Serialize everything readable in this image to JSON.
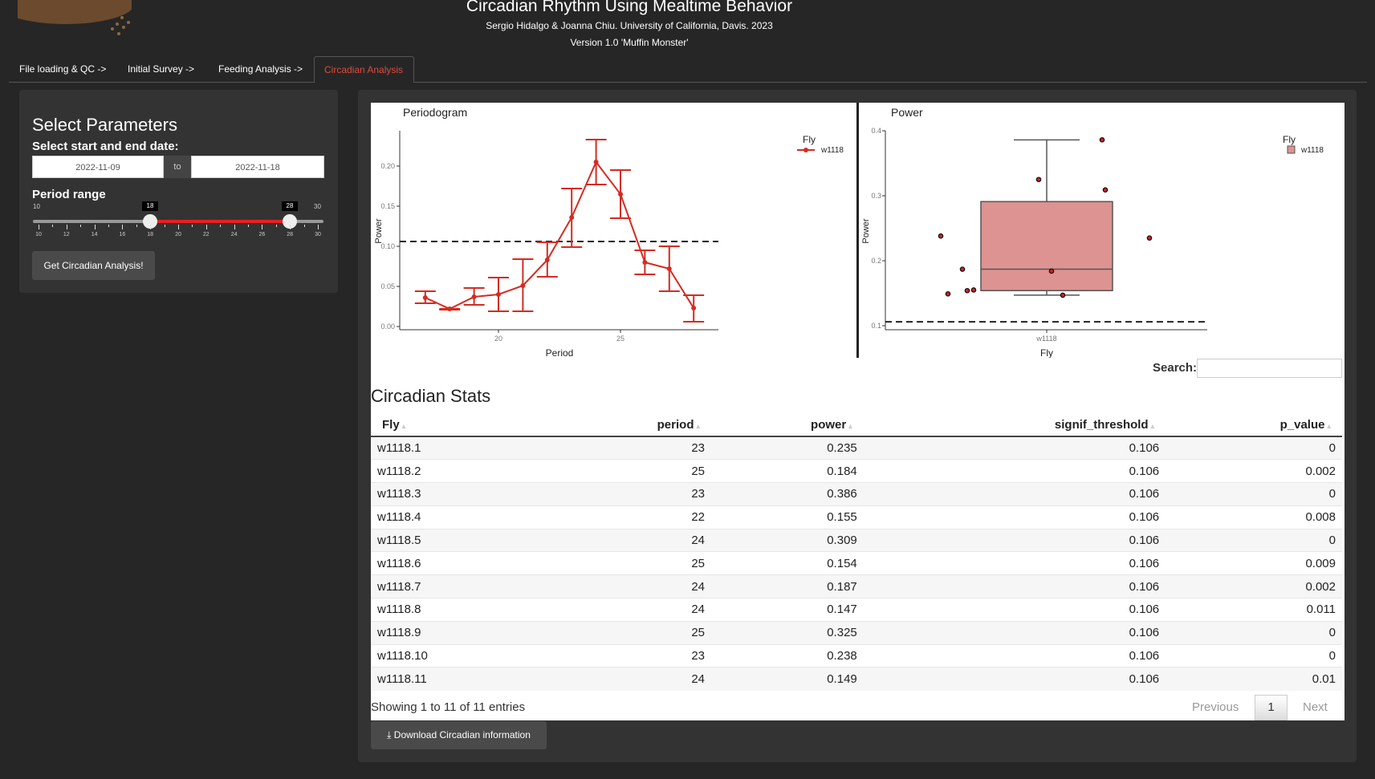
{
  "header": {
    "title": "Circadian Rhythm Using Mealtime Behavior",
    "authors": "Sergio Hidalgo & Joanna Chiu. University of California, Davis. 2023",
    "version": "Version 1.0 'Muffin Monster'"
  },
  "tabs": [
    {
      "label": "File loading & QC ->"
    },
    {
      "label": "Initial Survey ->"
    },
    {
      "label": "Feeding Analysis ->"
    },
    {
      "label": "Circadian Analysis",
      "active": true
    }
  ],
  "params": {
    "title": "Select Parameters",
    "date_label": "Select start and end date:",
    "start_date": "2022-11-09",
    "date_sep": "to",
    "end_date": "2022-11-18",
    "period_label": "Period range",
    "slider_min": "10",
    "slider_max": "30",
    "slider_low": "18",
    "slider_high": "28",
    "slider_ticks": [
      "10",
      "12",
      "14",
      "16",
      "18",
      "20",
      "22",
      "24",
      "26",
      "28",
      "30"
    ],
    "button": "Get Circadian Analysis!"
  },
  "colors": {
    "accent": "#e04a3a",
    "series": "#d42c22",
    "box_fill": "#dc9391"
  },
  "chart_data": [
    {
      "type": "line",
      "title": "Periodogram",
      "xlabel": "Period",
      "ylabel": "Power",
      "legend_title": "Fly",
      "legend": [
        "w1118"
      ],
      "legend_position": "top-right",
      "x": [
        17,
        18,
        19,
        20,
        21,
        22,
        23,
        24,
        25,
        26,
        27,
        28
      ],
      "y": [
        0.036,
        0.022,
        0.037,
        0.04,
        0.051,
        0.083,
        0.136,
        0.205,
        0.165,
        0.08,
        0.072,
        0.023
      ],
      "err_low": [
        0.029,
        0.021,
        0.027,
        0.019,
        0.019,
        0.062,
        0.099,
        0.177,
        0.135,
        0.065,
        0.044,
        0.006
      ],
      "err_high": [
        0.044,
        0.022,
        0.048,
        0.061,
        0.084,
        0.105,
        0.172,
        0.233,
        0.195,
        0.095,
        0.1,
        0.039
      ],
      "threshold": 0.106,
      "xticks": [
        "20",
        "25"
      ],
      "yticks": [
        "0.00",
        "0.05",
        "0.10",
        "0.15",
        "0.20"
      ],
      "xlim": [
        15.8,
        28.9
      ],
      "ylim": [
        0,
        0.24
      ]
    },
    {
      "type": "box",
      "title": "Power",
      "xlabel": "Fly",
      "ylabel": "Power",
      "legend_title": "Fly",
      "legend": [
        "w1118"
      ],
      "legend_position": "top-right",
      "categories": [
        "w1118"
      ],
      "box": {
        "whisker_low": 0.147,
        "q1": 0.154,
        "median": 0.187,
        "q3": 0.291,
        "whisker_high": 0.386
      },
      "points": [
        0.235,
        0.184,
        0.386,
        0.155,
        0.309,
        0.154,
        0.187,
        0.147,
        0.325,
        0.238,
        0.149
      ],
      "threshold": 0.106,
      "yticks": [
        "0.1",
        "0.2",
        "0.3",
        "0.4"
      ],
      "ylim": [
        0.093,
        0.41
      ]
    }
  ],
  "table": {
    "title": "Circadian Stats",
    "search_label": "Search:",
    "search_value": "",
    "columns": [
      "Fly",
      "period",
      "power",
      "signif_threshold",
      "p_value"
    ],
    "rows": [
      [
        "w1118.1",
        "23",
        "0.235",
        "0.106",
        "0"
      ],
      [
        "w1118.2",
        "25",
        "0.184",
        "0.106",
        "0.002"
      ],
      [
        "w1118.3",
        "23",
        "0.386",
        "0.106",
        "0"
      ],
      [
        "w1118.4",
        "22",
        "0.155",
        "0.106",
        "0.008"
      ],
      [
        "w1118.5",
        "24",
        "0.309",
        "0.106",
        "0"
      ],
      [
        "w1118.6",
        "25",
        "0.154",
        "0.106",
        "0.009"
      ],
      [
        "w1118.7",
        "24",
        "0.187",
        "0.106",
        "0.002"
      ],
      [
        "w1118.8",
        "24",
        "0.147",
        "0.106",
        "0.011"
      ],
      [
        "w1118.9",
        "25",
        "0.325",
        "0.106",
        "0"
      ],
      [
        "w1118.10",
        "23",
        "0.238",
        "0.106",
        "0"
      ],
      [
        "w1118.11",
        "24",
        "0.149",
        "0.106",
        "0.01"
      ]
    ],
    "info": "Showing 1 to 11 of 11 entries",
    "prev": "Previous",
    "page": "1",
    "next": "Next"
  },
  "download_label": "Download Circadian information"
}
